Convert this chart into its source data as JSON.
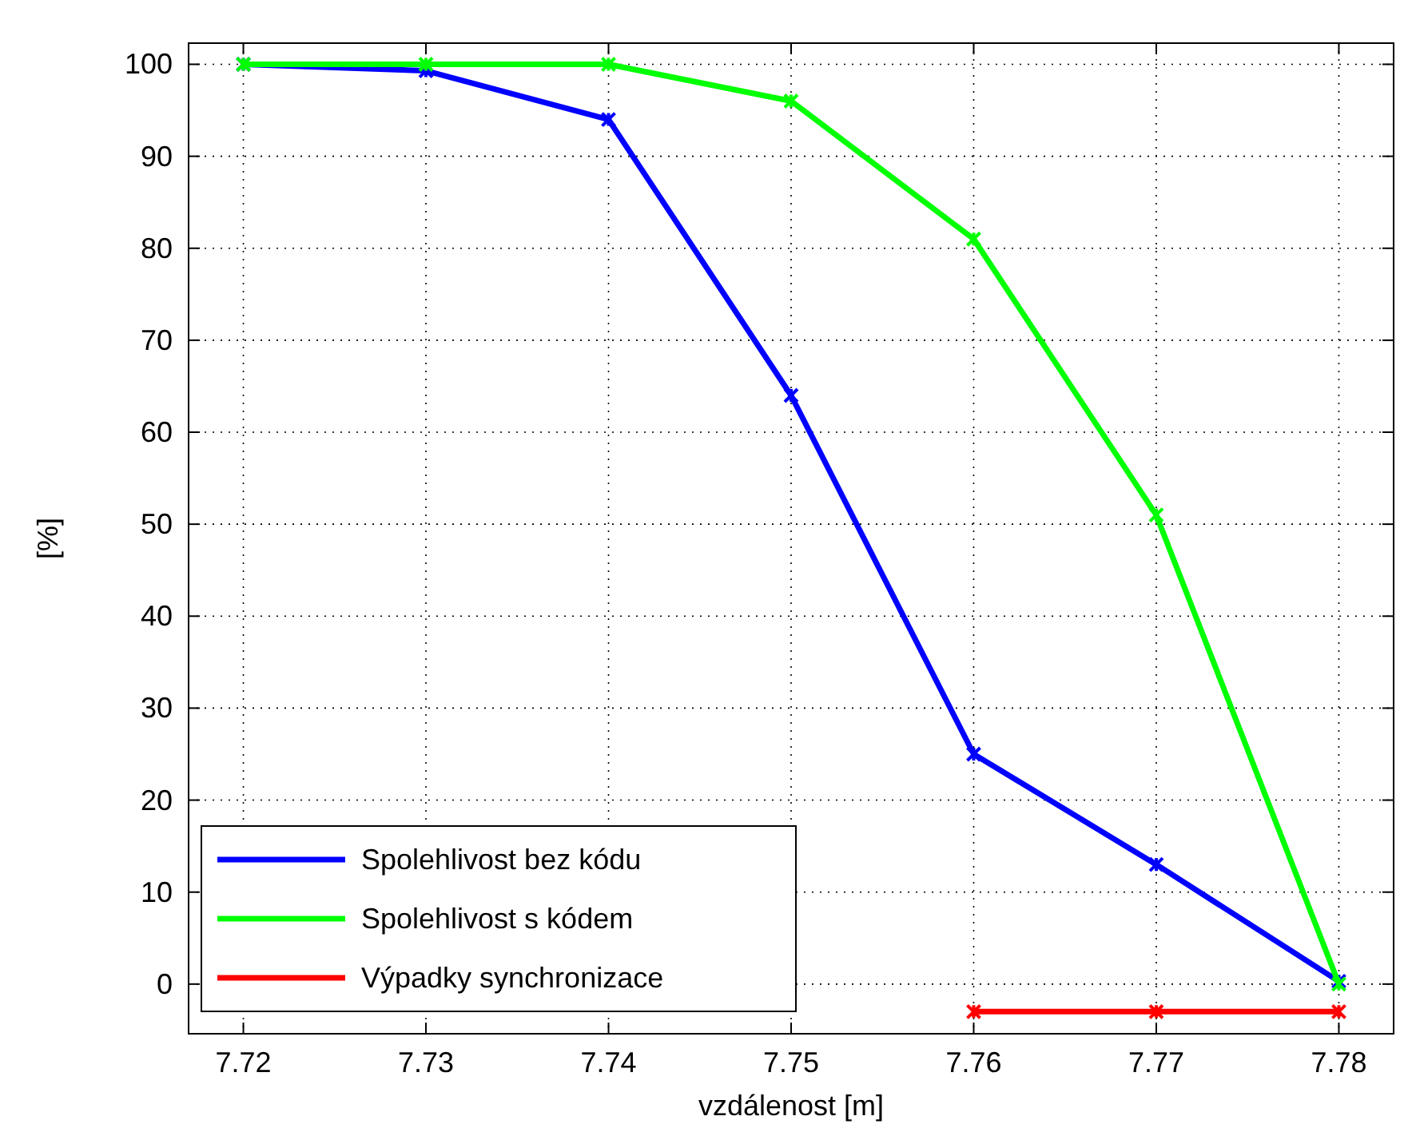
{
  "chart_data": {
    "type": "line",
    "xlabel": "vzdálenost [m]",
    "ylabel": "[%]",
    "x": [
      7.72,
      7.73,
      7.74,
      7.75,
      7.76,
      7.77,
      7.78
    ],
    "series": [
      {
        "name": "Spolehlivost bez kódu",
        "color": "#0000ff",
        "values": [
          100,
          99.3,
          94,
          64,
          25,
          13,
          0.3
        ]
      },
      {
        "name": "Spolehlivost s kódem",
        "color": "#00ff00",
        "values": [
          100,
          100,
          100,
          96,
          81,
          51,
          0
        ]
      },
      {
        "name": "Výpadky synchronizace",
        "color": "#ff0000",
        "values": [
          null,
          null,
          null,
          null,
          -3,
          -3,
          -3
        ]
      }
    ],
    "xlim": [
      7.717,
      7.783
    ],
    "ylim": [
      -5.4,
      102.3
    ],
    "xticks": [
      7.72,
      7.73,
      7.74,
      7.75,
      7.76,
      7.77,
      7.78
    ],
    "yticks": [
      0,
      10,
      20,
      30,
      40,
      50,
      60,
      70,
      80,
      90,
      100
    ],
    "grid": true,
    "legend": "bottom left",
    "marker": "cross",
    "line_style": "solid"
  }
}
